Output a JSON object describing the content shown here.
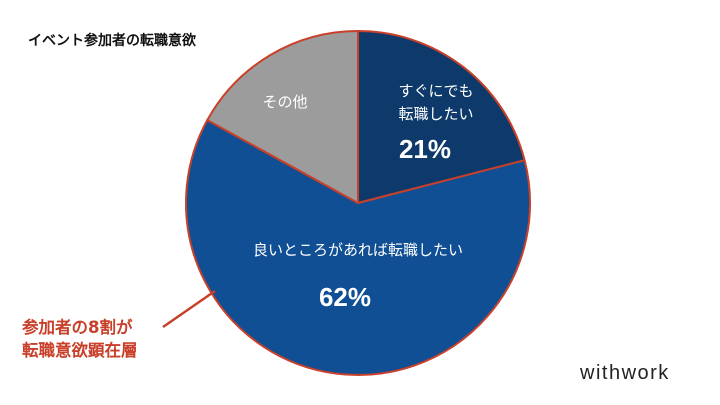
{
  "chart_data": {
    "type": "pie",
    "title": "イベント参加者の転職意欲",
    "slices": [
      {
        "label_lines": [
          "すぐにでも",
          "転職したい"
        ],
        "value": 21,
        "display": "21%",
        "color": "#0d3a6b"
      },
      {
        "label_lines": [
          "良いところがあれば転職したい"
        ],
        "value": 62,
        "display": "62%",
        "color": "#104f93"
      },
      {
        "label_lines": [
          "その他"
        ],
        "value": 17,
        "display": "",
        "color": "#9c9c9c"
      }
    ],
    "highlight_color": "#c8402a"
  },
  "annotation": {
    "lines": [
      "参加者の8割が",
      "転職意欲顕在層"
    ]
  },
  "brand": "withwork"
}
